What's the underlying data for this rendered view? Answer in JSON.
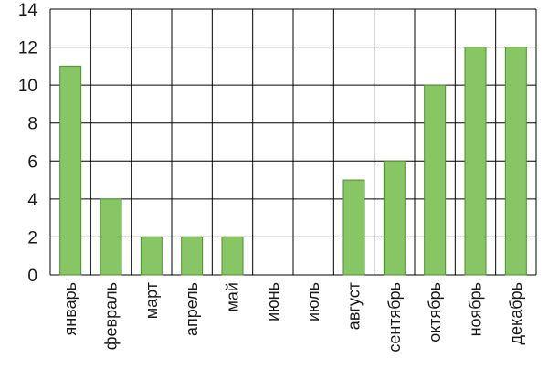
{
  "chart_data": {
    "type": "bar",
    "title": "",
    "xlabel": "",
    "ylabel": "",
    "categories": [
      "январь",
      "февраль",
      "март",
      "апрель",
      "май",
      "июнь",
      "июль",
      "август",
      "сентябрь",
      "октябрь",
      "ноябрь",
      "декабрь"
    ],
    "values": [
      11,
      4,
      2,
      2,
      2,
      0,
      0,
      5,
      6,
      10,
      12,
      12
    ],
    "ylim": [
      0,
      14
    ],
    "yticks": [
      "0",
      "2",
      "4",
      "6",
      "8",
      "10",
      "12",
      "14"
    ],
    "grid": true,
    "colors": {
      "bar_fill": "#88c665",
      "bar_stroke": "#4e8f33",
      "grid": "#000000"
    }
  }
}
